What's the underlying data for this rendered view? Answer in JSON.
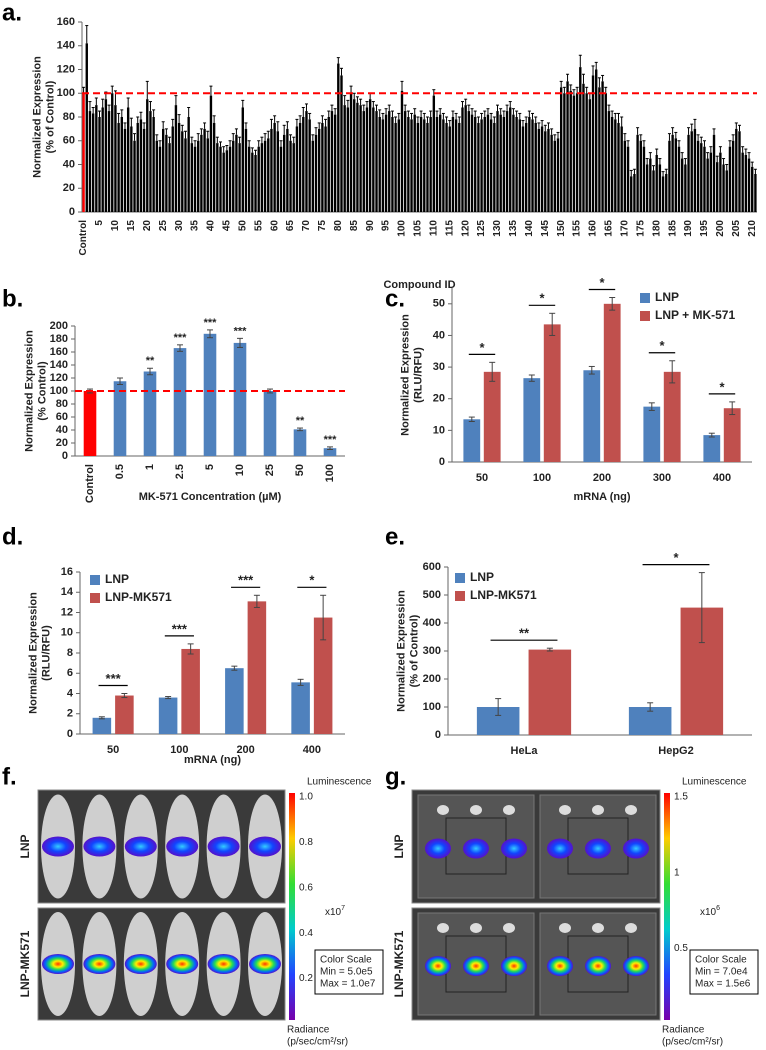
{
  "chart_data": [
    {
      "type": "bar",
      "label": "a.",
      "ylabel": [
        "Normalized Expression",
        "(% of Control)"
      ],
      "xlabel": "Compound ID",
      "categories": [
        "Control",
        null,
        null,
        null,
        null,
        "5",
        null,
        null,
        null,
        null,
        "10",
        null,
        null,
        null,
        null,
        "15",
        null,
        null,
        null,
        null,
        "20",
        null,
        null,
        null,
        null,
        "25",
        null,
        null,
        null,
        null,
        "30",
        null,
        null,
        null,
        null,
        "35",
        null,
        null,
        null,
        null,
        "40",
        null,
        null,
        null,
        null,
        "45",
        null,
        null,
        null,
        null,
        "50",
        null,
        null,
        null,
        null,
        "55",
        null,
        null,
        null,
        null,
        "60",
        null,
        null,
        null,
        null,
        "65",
        null,
        null,
        null,
        null,
        "70",
        null,
        null,
        null,
        null,
        "75",
        null,
        null,
        null,
        null,
        "80",
        null,
        null,
        null,
        null,
        "85",
        null,
        null,
        null,
        null,
        "90",
        null,
        null,
        null,
        null,
        "95",
        null,
        null,
        null,
        null,
        "100",
        null,
        null,
        null,
        null,
        "105",
        null,
        null,
        null,
        null,
        "110",
        null,
        null,
        null,
        null,
        "115",
        null,
        null,
        null,
        null,
        "120",
        null,
        null,
        null,
        null,
        "125",
        null,
        null,
        null,
        null,
        "130",
        null,
        null,
        null,
        null,
        "135",
        null,
        null,
        null,
        null,
        "140",
        null,
        null,
        null,
        null,
        "145",
        null,
        null,
        null,
        null,
        "150",
        null,
        null,
        null,
        null,
        "155",
        null,
        null,
        null,
        null,
        "160",
        null,
        null,
        null,
        null,
        "165",
        null,
        null,
        null,
        null,
        "170",
        null,
        null,
        null,
        null,
        "175",
        null,
        null,
        null,
        null,
        "180",
        null,
        null,
        null,
        null,
        "185",
        null,
        null,
        null,
        null,
        "190",
        null,
        null,
        null,
        null,
        "195",
        null,
        null,
        null,
        null,
        "200",
        null,
        null,
        null,
        null,
        "205",
        null,
        null,
        null,
        null,
        "210",
        null
      ],
      "values": [
        100,
        142,
        85,
        83,
        90,
        80,
        88,
        95,
        85,
        100,
        90,
        75,
        80,
        70,
        88,
        72,
        60,
        75,
        78,
        70,
        95,
        85,
        80,
        60,
        55,
        70,
        65,
        58,
        72,
        90,
        75,
        68,
        62,
        80,
        58,
        55,
        60,
        65,
        70,
        62,
        98,
        75,
        58,
        55,
        50,
        52,
        55,
        60,
        65,
        58,
        88,
        70,
        55,
        50,
        48,
        55,
        58,
        60,
        62,
        70,
        75,
        68,
        55,
        65,
        70,
        60,
        58,
        72,
        75,
        80,
        85,
        78,
        60,
        65,
        70,
        75,
        72,
        80,
        85,
        82,
        125,
        115,
        90,
        88,
        100,
        95,
        92,
        90,
        85,
        88,
        95,
        88,
        85,
        80,
        78,
        82,
        85,
        80,
        75,
        78,
        102,
        85,
        80,
        78,
        82,
        75,
        80,
        78,
        75,
        80,
        98,
        80,
        82,
        78,
        75,
        72,
        80,
        78,
        75,
        88,
        90,
        85,
        82,
        80,
        75,
        78,
        80,
        82,
        78,
        75,
        85,
        82,
        80,
        85,
        88,
        82,
        80,
        78,
        72,
        75,
        80,
        78,
        75,
        70,
        72,
        68,
        70,
        65,
        60,
        62,
        105,
        100,
        110,
        102,
        98,
        100,
        122,
        108,
        100,
        95,
        115,
        120,
        105,
        110,
        100,
        85,
        80,
        78,
        75,
        72,
        60,
        55,
        30,
        32,
        65,
        60,
        55,
        40,
        45,
        35,
        48,
        40,
        30,
        32,
        60,
        65,
        62,
        55,
        45,
        40,
        65,
        68,
        70,
        60,
        58,
        55,
        45,
        50,
        65,
        42,
        50,
        40,
        35,
        55,
        60,
        70,
        68,
        50,
        48,
        45,
        38,
        32
      ],
      "errors": [
        5,
        15,
        8,
        5,
        6,
        5,
        7,
        6,
        5,
        6,
        12,
        8,
        6,
        5,
        8,
        7,
        6,
        5,
        6,
        5,
        15,
        8,
        6,
        5,
        5,
        6,
        5,
        5,
        6,
        8,
        7,
        5,
        6,
        8,
        5,
        5,
        6,
        5,
        5,
        6,
        8,
        6,
        5,
        4,
        5,
        4,
        5,
        6,
        5,
        5,
        6,
        5,
        5,
        4,
        4,
        5,
        5,
        6,
        6,
        8,
        6,
        8,
        5,
        8,
        6,
        5,
        5,
        6,
        6,
        8,
        6,
        5,
        5,
        6,
        5,
        6,
        6,
        5,
        5,
        5,
        5,
        6,
        8,
        6,
        6,
        5,
        5,
        5,
        5,
        5,
        5,
        5,
        5,
        6,
        5,
        5,
        5,
        5,
        5,
        5,
        8,
        5,
        5,
        5,
        5,
        5,
        5,
        5,
        5,
        5,
        5,
        5,
        5,
        5,
        5,
        5,
        5,
        5,
        5,
        5,
        5,
        5,
        5,
        5,
        5,
        5,
        5,
        5,
        5,
        5,
        5,
        5,
        5,
        5,
        5,
        5,
        5,
        5,
        5,
        5,
        5,
        5,
        5,
        5,
        5,
        5,
        5,
        5,
        5,
        5,
        5,
        5,
        6,
        5,
        5,
        5,
        10,
        8,
        5,
        5,
        8,
        6,
        8,
        5,
        5,
        5,
        5,
        5,
        8,
        8,
        6,
        5,
        5,
        4,
        6,
        5,
        5,
        5,
        5,
        4,
        5,
        5,
        4,
        4,
        6,
        6,
        5,
        5,
        5,
        5,
        6,
        6,
        8,
        5,
        5,
        5,
        5,
        5,
        5,
        5,
        5,
        5,
        5,
        5,
        5,
        5,
        5,
        5,
        5,
        5,
        4,
        4
      ],
      "color": "#000000",
      "control_color": "#ff0000",
      "reference_line": 100,
      "reference_color": "#ff0000",
      "ylim": [
        0,
        160
      ],
      "yticks": [
        0,
        20,
        40,
        60,
        80,
        100,
        120,
        140,
        160
      ]
    },
    {
      "type": "bar",
      "label": "b.",
      "ylabel": [
        "Normalized Expression",
        "(% Control)"
      ],
      "xlabel": "MK-571 Concentration (µM)",
      "categories": [
        "Control",
        "0.5",
        "1",
        "2.5",
        "5",
        "10",
        "25",
        "50",
        "100"
      ],
      "values": [
        100,
        115,
        130,
        166,
        188,
        174,
        100,
        41,
        12
      ],
      "errors": [
        3,
        5,
        5,
        5,
        6,
        7,
        3,
        2,
        2
      ],
      "significance": [
        null,
        null,
        "**",
        "***",
        "***",
        "***",
        null,
        "**",
        "***"
      ],
      "color": "#4f81bd",
      "control_color": "#ff0000",
      "reference_line": 100,
      "reference_color": "#ff0000",
      "ylim": [
        0,
        200
      ],
      "yticks": [
        0,
        20,
        40,
        60,
        80,
        100,
        120,
        140,
        160,
        180,
        200
      ]
    },
    {
      "type": "bar",
      "label": "c.",
      "ylabel": [
        "Normalized Expression",
        "(RLU/RFU)"
      ],
      "xlabel": "mRNA (ng)",
      "categories": [
        "50",
        "100",
        "200",
        "300",
        "400"
      ],
      "series": [
        {
          "name": "LNP",
          "color": "#4f81bd",
          "values": [
            13.5,
            26.5,
            29,
            17.5,
            8.5
          ],
          "errors": [
            0.7,
            1,
            1.2,
            1.2,
            0.6
          ]
        },
        {
          "name": "LNP + MK-571",
          "color": "#c0504d",
          "values": [
            28.5,
            43.5,
            50,
            28.5,
            17
          ],
          "errors": [
            3,
            3.5,
            2,
            3.5,
            2
          ]
        }
      ],
      "significance": [
        "*",
        "*",
        "*",
        "*",
        "*"
      ],
      "legend": "upper right",
      "ylim": [
        0,
        55
      ],
      "yticks": [
        0,
        10,
        20,
        30,
        40,
        50
      ]
    },
    {
      "type": "bar",
      "label": "d.",
      "ylabel": [
        "Normalized Expression",
        "(RLU/RFU)"
      ],
      "xlabel": "mRNA (ng)",
      "categories": [
        "50",
        "100",
        "200",
        "400"
      ],
      "series": [
        {
          "name": "LNP",
          "color": "#4f81bd",
          "values": [
            1.6,
            3.6,
            6.5,
            5.1
          ],
          "errors": [
            0.1,
            0.1,
            0.2,
            0.3
          ]
        },
        {
          "name": "LNP-MK571",
          "color": "#c0504d",
          "values": [
            3.8,
            8.4,
            13.1,
            11.5
          ],
          "errors": [
            0.2,
            0.5,
            0.6,
            2.2
          ]
        }
      ],
      "significance": [
        "***",
        "***",
        "***",
        "*"
      ],
      "legend": "upper left",
      "ylim": [
        0,
        16
      ],
      "yticks": [
        0,
        2,
        4,
        6,
        8,
        10,
        12,
        14,
        16
      ]
    },
    {
      "type": "bar",
      "label": "e.",
      "ylabel": [
        "Normalized Expression",
        "(% of Control)"
      ],
      "categories": [
        "HeLa",
        "HepG2"
      ],
      "series": [
        {
          "name": "LNP",
          "color": "#4f81bd",
          "values": [
            100,
            100
          ],
          "errors": [
            30,
            15
          ]
        },
        {
          "name": "LNP-MK571",
          "color": "#c0504d",
          "values": [
            305,
            455
          ],
          "errors": [
            5,
            125
          ]
        }
      ],
      "significance": [
        "**",
        "*"
      ],
      "legend": "upper left",
      "ylim": [
        0,
        600
      ],
      "yticks": [
        0,
        100,
        200,
        300,
        400,
        500,
        600
      ]
    }
  ],
  "images": [
    {
      "label": "f.",
      "rows": [
        "LNP",
        "LNP-MK571"
      ],
      "colorbar_title": "Luminescence",
      "colorbar_ticks": [
        "1.0",
        "0.8",
        "0.6",
        "0.4",
        "0.2"
      ],
      "scale": "x10",
      "scale_exponent": "7",
      "box": [
        "Color Scale",
        "Min = 5.0e5",
        "Max = 1.0e7"
      ],
      "unit": [
        "Radiance",
        "(p/sec/cm²/sr)"
      ]
    },
    {
      "label": "g.",
      "rows": [
        "LNP",
        "LNP-MK571"
      ],
      "colorbar_title": "Luminescence",
      "colorbar_ticks": [
        "1.5",
        "1",
        "0.5"
      ],
      "scale": "x10",
      "scale_exponent": "6",
      "box": [
        "Color Scale",
        "Min = 7.0e4",
        "Max = 1.5e6"
      ],
      "unit": [
        "Radiance",
        "(p/sec/cm²/sr)"
      ]
    }
  ]
}
